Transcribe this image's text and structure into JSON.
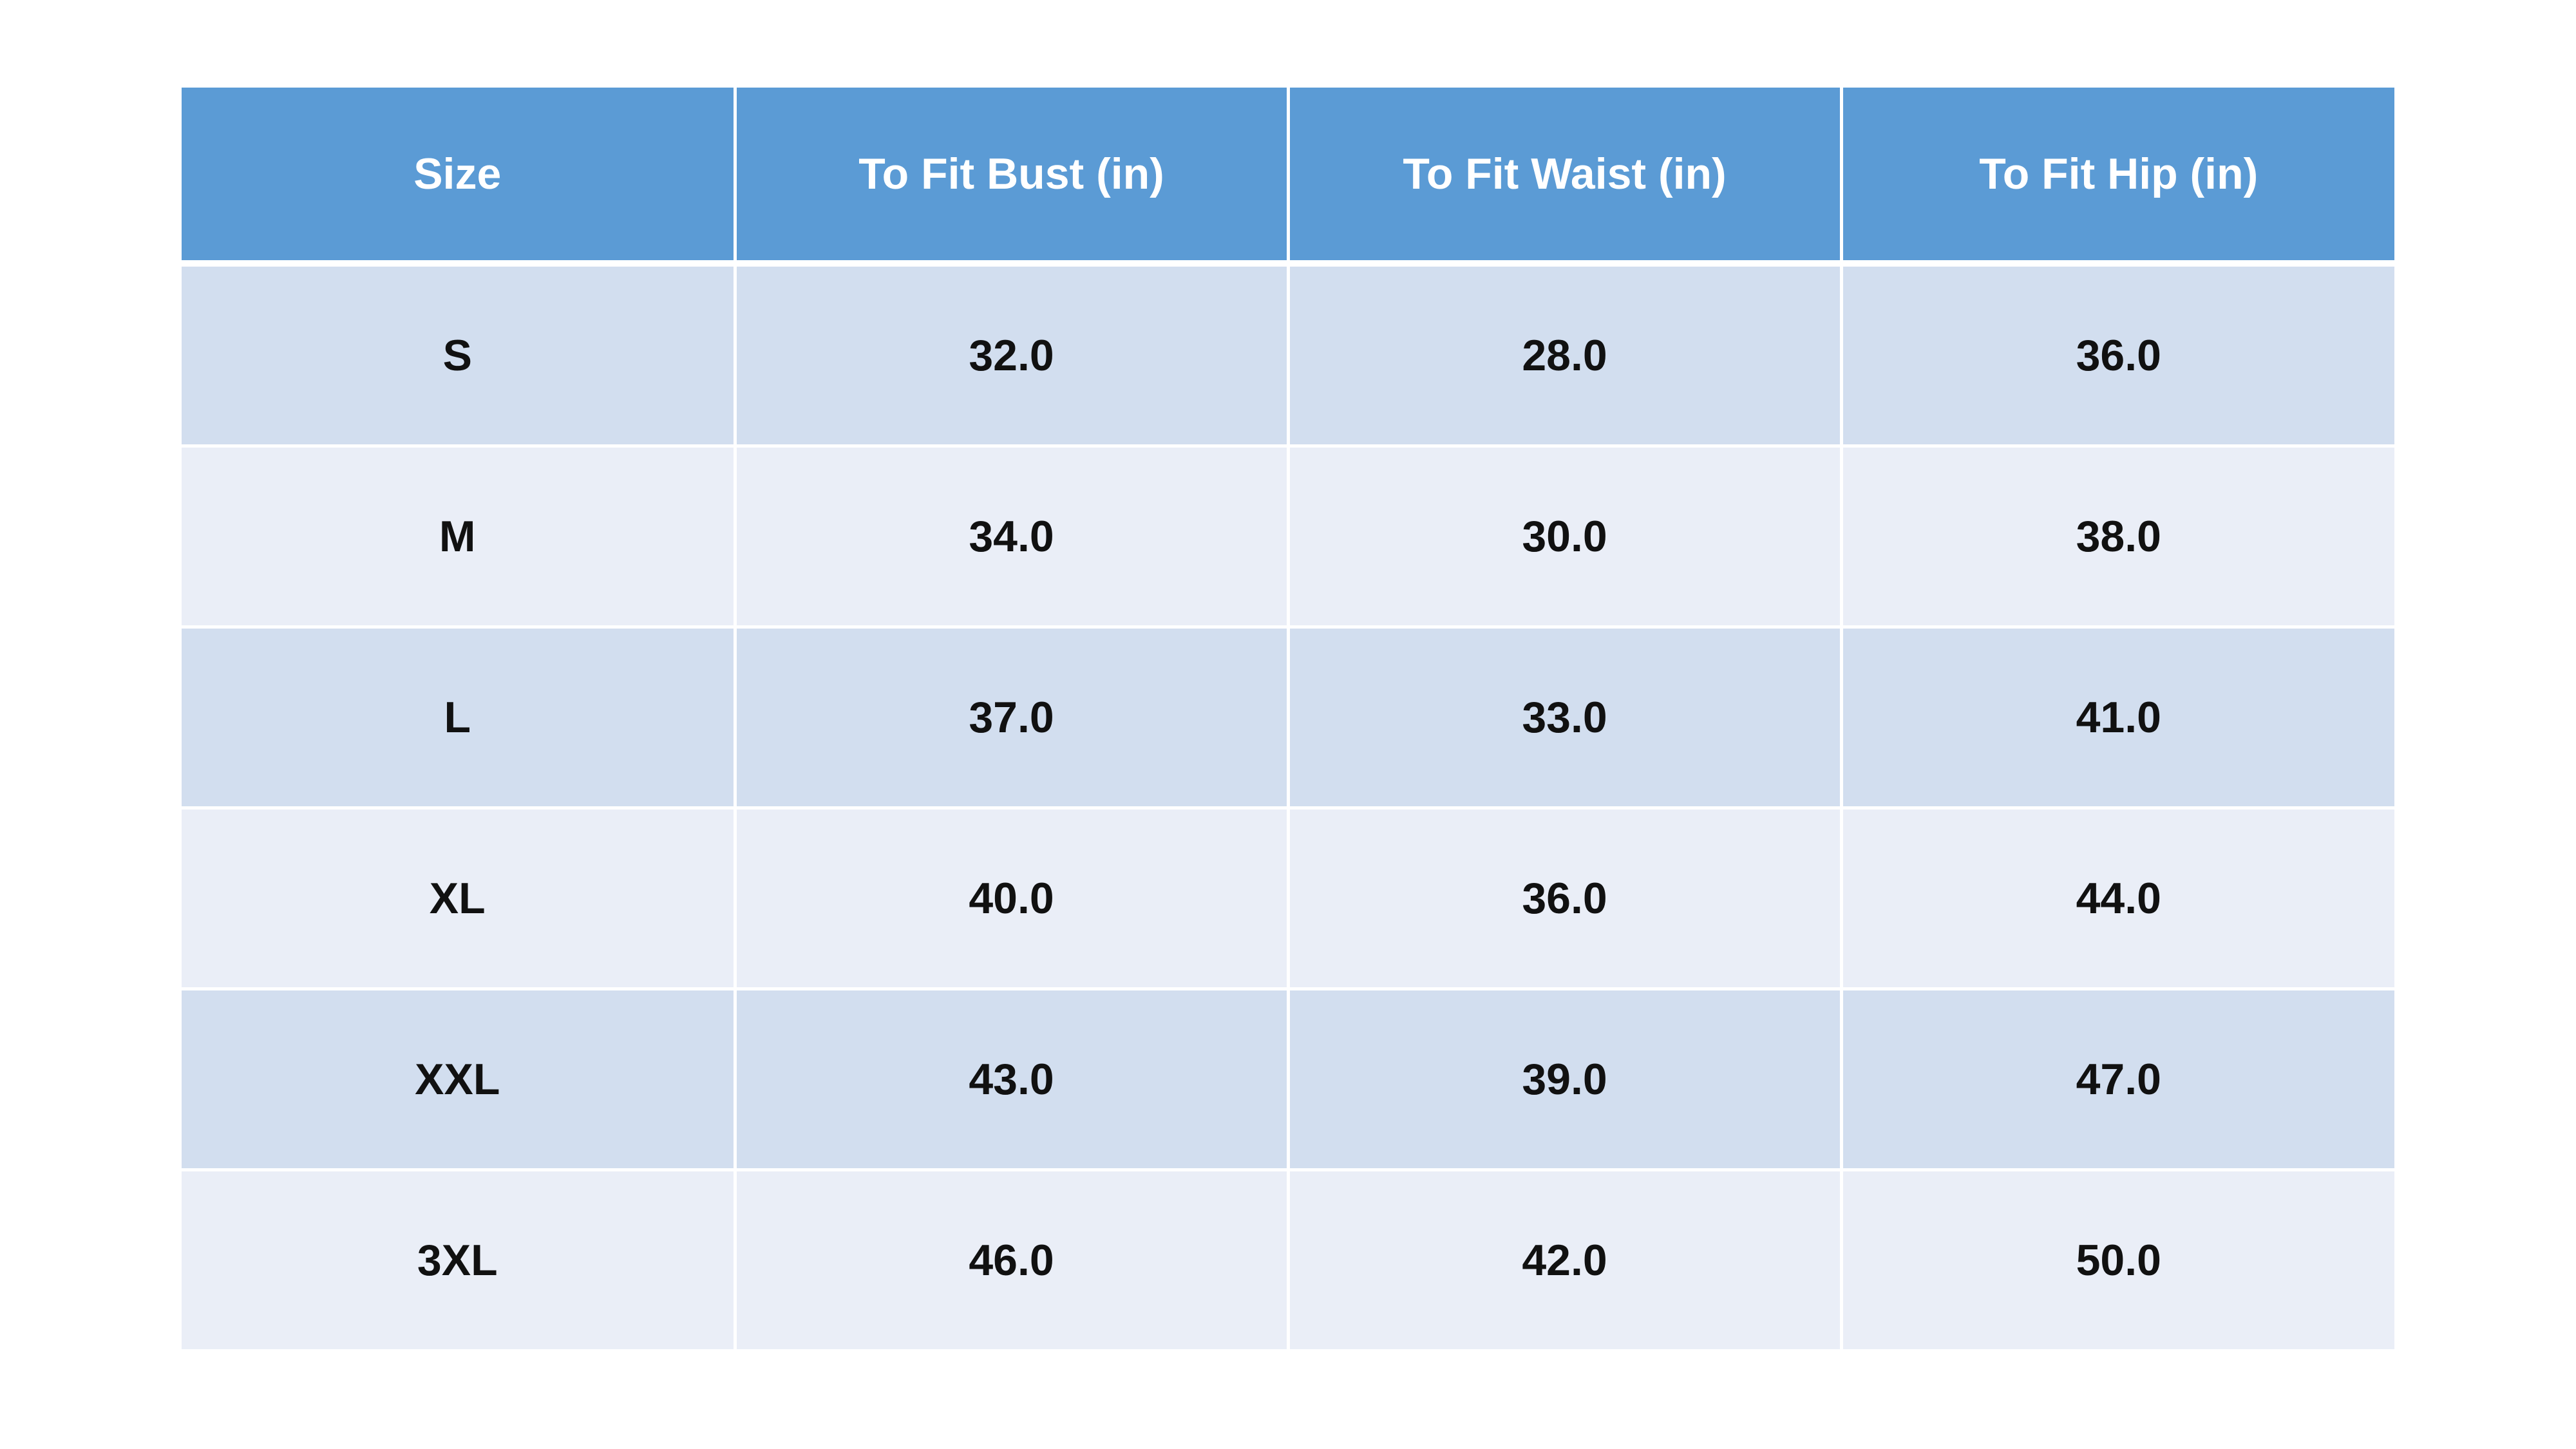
{
  "colors": {
    "header_bg": "#5B9BD5",
    "header_text": "#FFFFFF",
    "row_odd_bg": "#D2DEEF",
    "row_even_bg": "#EAEEF7",
    "cell_text": "#111111"
  },
  "table": {
    "headers": [
      "Size",
      "To Fit Bust (in)",
      "To Fit Waist (in)",
      "To Fit Hip (in)"
    ],
    "rows": [
      [
        "S",
        "32.0",
        "28.0",
        "36.0"
      ],
      [
        "M",
        "34.0",
        "30.0",
        "38.0"
      ],
      [
        "L",
        "37.0",
        "33.0",
        "41.0"
      ],
      [
        "XL",
        "40.0",
        "36.0",
        "44.0"
      ],
      [
        "XXL",
        "43.0",
        "39.0",
        "47.0"
      ],
      [
        "3XL",
        "46.0",
        "42.0",
        "50.0"
      ]
    ]
  }
}
